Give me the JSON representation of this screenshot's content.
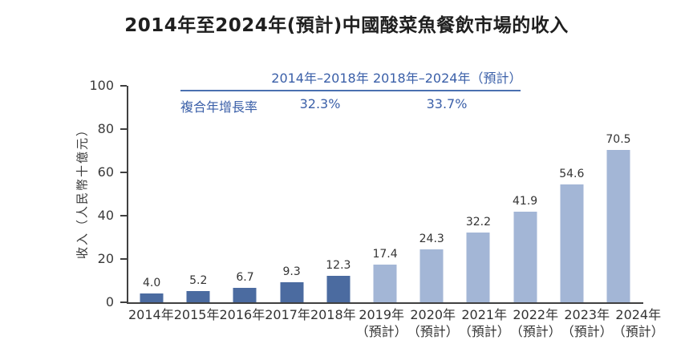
{
  "chart_data": {
    "type": "bar",
    "title": "2014年至2024年(預計)中國酸菜魚餐飲市場的收入",
    "ylabel": "收入（人民幣十億元）",
    "xlabel": "",
    "ylim": [
      0,
      100
    ],
    "yticks": [
      0,
      20,
      40,
      60,
      80,
      100
    ],
    "grid": false,
    "legend": "none",
    "categories": [
      "2014年",
      "2015年",
      "2016年",
      "2017年",
      "2018年",
      "2019年",
      "2020年",
      "2021年",
      "2022年",
      "2023年",
      "2024年"
    ],
    "category_sublabels": [
      "",
      "",
      "",
      "",
      "",
      "（預計）",
      "（預計）",
      "（預計）",
      "（預計）",
      "（預計）",
      "（預計）"
    ],
    "values": [
      4.0,
      5.2,
      6.7,
      9.3,
      12.3,
      17.4,
      24.3,
      32.2,
      41.9,
      54.6,
      70.5
    ],
    "value_labels": [
      "4.0",
      "5.2",
      "6.7",
      "9.3",
      "12.3",
      "17.4",
      "24.3",
      "32.2",
      "41.9",
      "54.6",
      "70.5"
    ],
    "historical_count": 5,
    "colors": {
      "historical_bar": "#4b6ba0",
      "forecast_bar": "#a3b6d6",
      "axis": "#404040",
      "label_text": "#333333",
      "annotation_blue": "#3a5fa8"
    },
    "cagr_table": {
      "period1_header": "2014年–2018年",
      "period2_header": "2018年–2024年（預計）",
      "row_label": "複合年增長率",
      "period1_value": "32.3%",
      "period2_value": "33.7%"
    }
  }
}
